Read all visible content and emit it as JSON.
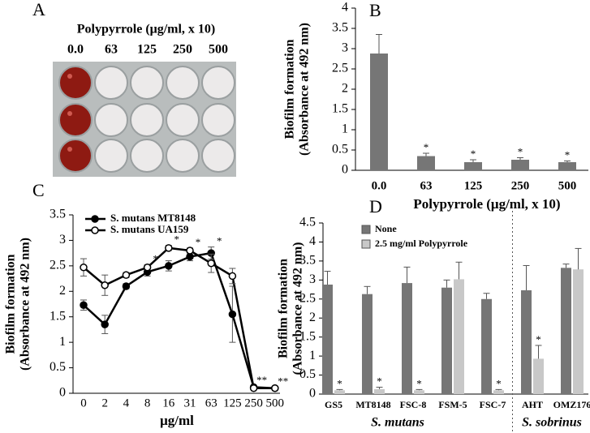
{
  "photo_panel": {
    "letter": "A",
    "title": "Polypyrrole (μg/ml, x 10)",
    "columns": [
      "0.0",
      "63",
      "125",
      "250",
      "500"
    ]
  },
  "chart_data": [
    {
      "type": "bar",
      "panel": "B",
      "xlabel": "Polypyrrole (μg/ml, x 10)",
      "ylabel": [
        "Biofilm formation",
        "(Absorbance at 492 nm)"
      ],
      "categories": [
        "0.0",
        "63",
        "125",
        "250",
        "500"
      ],
      "values": [
        2.88,
        0.35,
        0.2,
        0.26,
        0.2
      ],
      "errors": [
        0.47,
        0.07,
        0.06,
        0.05,
        0.03
      ],
      "annotations": [
        null,
        "*",
        "*",
        "*",
        "*"
      ],
      "color": "#767676",
      "ylim": [
        0,
        4
      ],
      "yticks": [
        0,
        0.5,
        1,
        1.5,
        2,
        2.5,
        3,
        3.5,
        4
      ]
    },
    {
      "type": "line",
      "panel": "C",
      "xlabel": "μg/ml",
      "ylabel": [
        "Biofilm formation",
        "(Absorbance at 492 nm)"
      ],
      "categories": [
        "0",
        "2",
        "4",
        "8",
        "16",
        "31",
        "63",
        "125",
        "250",
        "500"
      ],
      "series": [
        {
          "name": "S. mutans MT8148",
          "color": "#000000",
          "marker_face": "#000000",
          "values": [
            1.73,
            1.35,
            2.1,
            2.38,
            2.5,
            2.68,
            2.75,
            1.55,
            0.12,
            0.1
          ],
          "errors": [
            0.1,
            0.18,
            0.05,
            0.08,
            0.1,
            0.08,
            0.12,
            0.55,
            0.02,
            0.02
          ]
        },
        {
          "name": "S. mutans UA159",
          "color": "#000000",
          "marker_face": "#ffffff",
          "values": [
            2.47,
            2.12,
            2.32,
            2.47,
            2.85,
            2.8,
            2.55,
            2.3,
            0.1,
            0.1
          ],
          "errors": [
            0.17,
            0.2,
            0.05,
            0.05,
            0.05,
            0.05,
            0.18,
            0.15,
            0.02,
            0.02
          ]
        }
      ],
      "annotations": [
        null,
        null,
        null,
        "*",
        "*",
        "*",
        "*",
        null,
        "**",
        "**"
      ],
      "ylim": [
        0,
        3.5
      ],
      "yticks": [
        0,
        0.5,
        1,
        1.5,
        2,
        2.5,
        3,
        3.5
      ]
    },
    {
      "type": "bar",
      "panel": "D",
      "ylabel": [
        "Biofilm formation",
        "(Absorbance at 492 nm)"
      ],
      "categories": [
        "GS5",
        "MT8148",
        "FSC-8",
        "FSM-5",
        "FSC-7",
        "AHT",
        "OMZ176"
      ],
      "groups": [
        "S. mutans",
        "S. sobrinus"
      ],
      "series": [
        {
          "name": "None",
          "color": "#767676",
          "values": [
            2.88,
            2.63,
            2.92,
            2.8,
            2.5,
            2.73,
            3.32
          ],
          "errors": [
            0.35,
            0.2,
            0.42,
            0.2,
            0.15,
            0.65,
            0.1
          ]
        },
        {
          "name": "2.5 mg/ml Polypyrrole",
          "color": "#c8c8c8",
          "values": [
            0.1,
            0.13,
            0.1,
            3.02,
            0.1,
            0.93,
            3.28
          ],
          "errors": [
            0.02,
            0.05,
            0.02,
            0.45,
            0.02,
            0.35,
            0.55
          ],
          "annotations": [
            "*",
            "*",
            "*",
            null,
            "*",
            "*",
            null
          ]
        }
      ],
      "ylim": [
        0,
        4.5
      ],
      "yticks": [
        0,
        0.5,
        1,
        1.5,
        2,
        2.5,
        3,
        3.5,
        4,
        4.5
      ]
    }
  ]
}
